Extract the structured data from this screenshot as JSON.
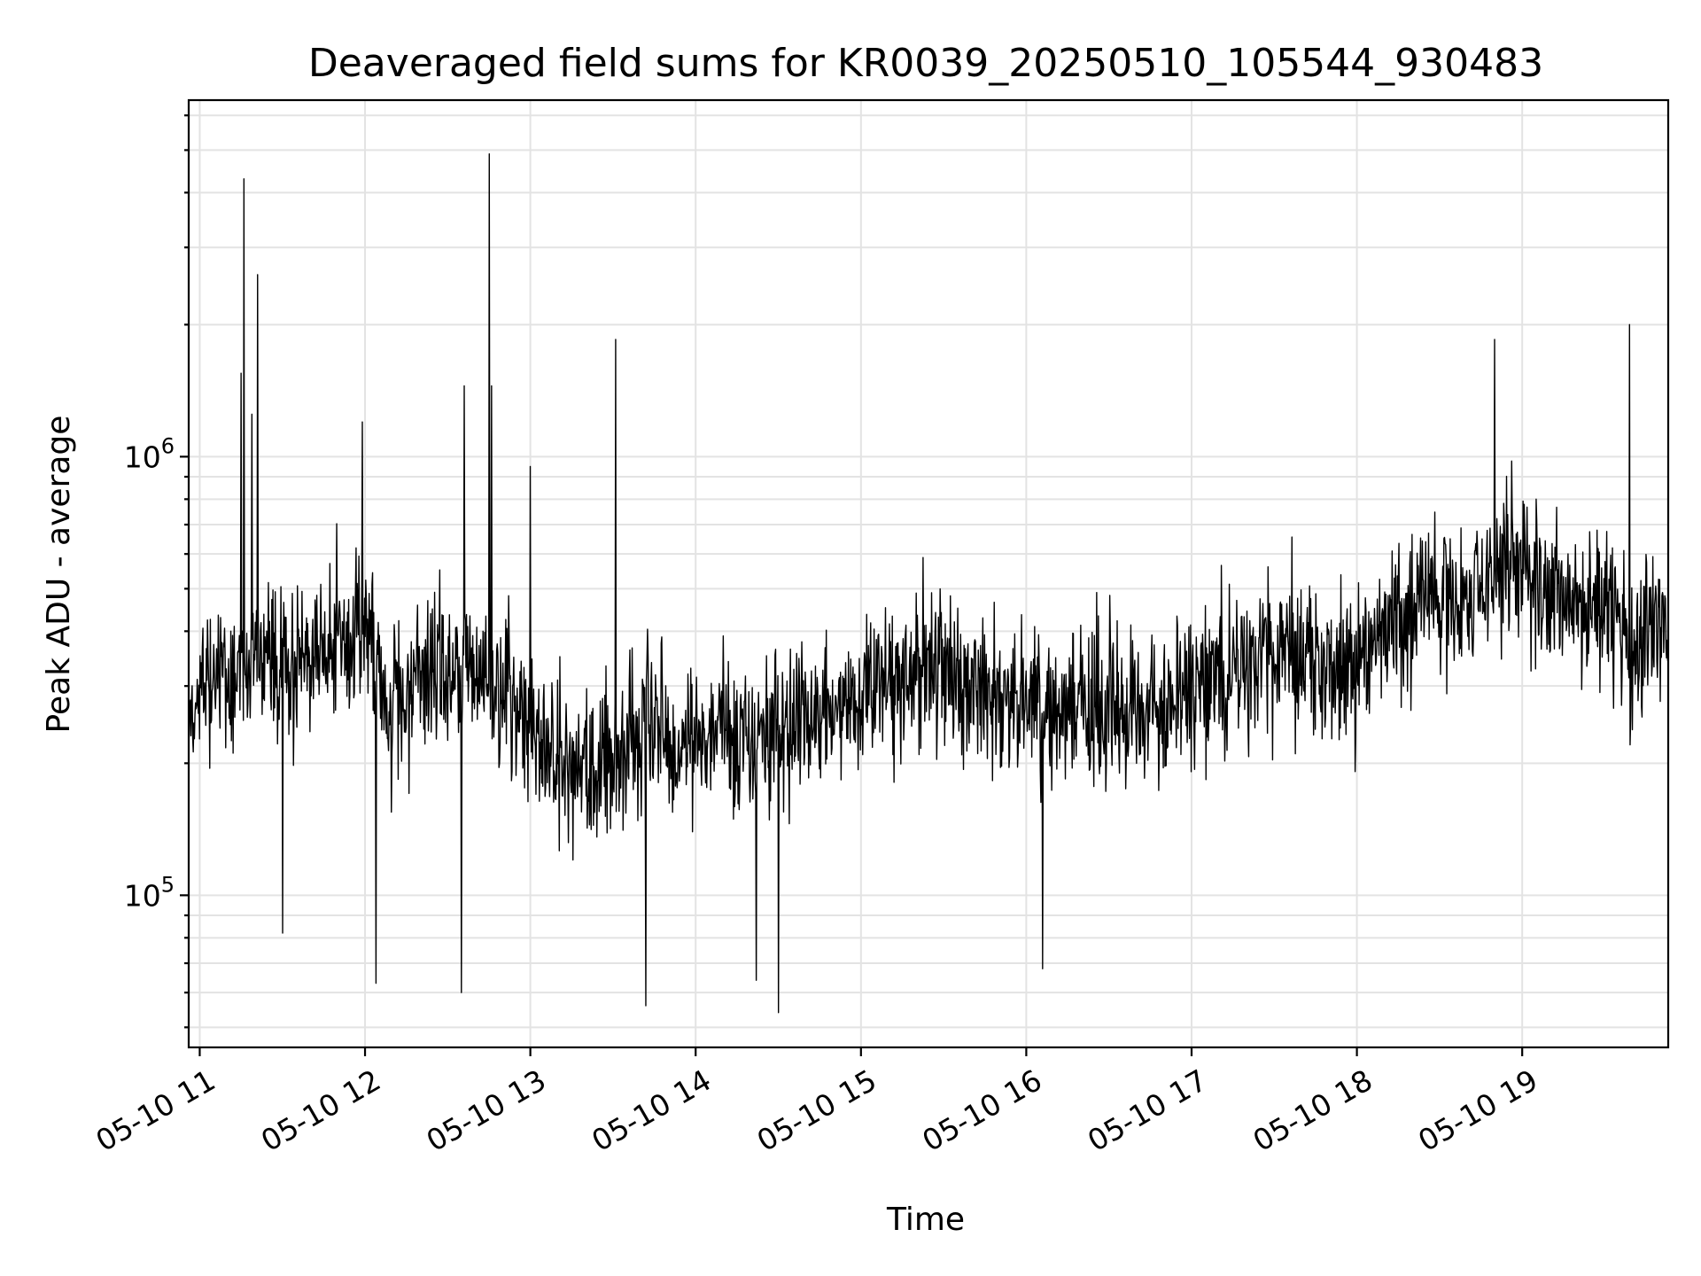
{
  "chart_data": {
    "type": "line",
    "title": "Deaveraged field sums for KR0039_20250510_105544_930483",
    "xlabel": "Time",
    "ylabel": "Peak ADU - average",
    "x_scale": "time",
    "y_scale": "log",
    "xlim": [
      "2025-05-10 10:56",
      "2025-05-10 19:53"
    ],
    "ylim": [
      45000,
      6500000
    ],
    "x_ticks": [
      {
        "value": "2025-05-10 11:00",
        "label": "05-10 11"
      },
      {
        "value": "2025-05-10 12:00",
        "label": "05-10 12"
      },
      {
        "value": "2025-05-10 13:00",
        "label": "05-10 13"
      },
      {
        "value": "2025-05-10 14:00",
        "label": "05-10 14"
      },
      {
        "value": "2025-05-10 15:00",
        "label": "05-10 15"
      },
      {
        "value": "2025-05-10 16:00",
        "label": "05-10 16"
      },
      {
        "value": "2025-05-10 17:00",
        "label": "05-10 17"
      },
      {
        "value": "2025-05-10 18:00",
        "label": "05-10 18"
      },
      {
        "value": "2025-05-10 19:00",
        "label": "05-10 19"
      }
    ],
    "y_ticks": [
      {
        "value": 100000,
        "label_base": "10",
        "label_exp": "5"
      },
      {
        "value": 1000000,
        "label_base": "10",
        "label_exp": "6"
      }
    ],
    "grid": true,
    "line_color": "#000000",
    "series": [
      {
        "x": [
          "2025-05-10 10:56",
          "2025-05-10 11:05",
          "2025-05-10 11:12",
          "2025-05-10 11:17",
          "2025-05-10 11:23",
          "2025-05-10 11:30",
          "2025-05-10 11:38",
          "2025-05-10 11:45",
          "2025-05-10 11:52",
          "2025-05-10 12:00",
          "2025-05-10 12:08",
          "2025-05-10 12:15",
          "2025-05-10 12:22",
          "2025-05-10 12:30",
          "2025-05-10 12:37",
          "2025-05-10 12:45",
          "2025-05-10 12:52",
          "2025-05-10 13:00",
          "2025-05-10 13:08",
          "2025-05-10 13:15",
          "2025-05-10 13:22",
          "2025-05-10 13:30",
          "2025-05-10 13:37",
          "2025-05-10 13:45",
          "2025-05-10 13:52",
          "2025-05-10 14:00",
          "2025-05-10 14:08",
          "2025-05-10 14:15",
          "2025-05-10 14:22",
          "2025-05-10 14:30",
          "2025-05-10 14:37",
          "2025-05-10 14:45",
          "2025-05-10 14:52",
          "2025-05-10 15:00",
          "2025-05-10 15:08",
          "2025-05-10 15:15",
          "2025-05-10 15:22",
          "2025-05-10 15:30",
          "2025-05-10 15:37",
          "2025-05-10 15:45",
          "2025-05-10 15:52",
          "2025-05-10 16:00",
          "2025-05-10 16:08",
          "2025-05-10 16:15",
          "2025-05-10 16:22",
          "2025-05-10 16:30",
          "2025-05-10 16:37",
          "2025-05-10 16:45",
          "2025-05-10 16:52",
          "2025-05-10 17:00",
          "2025-05-10 17:08",
          "2025-05-10 17:15",
          "2025-05-10 17:22",
          "2025-05-10 17:30",
          "2025-05-10 17:37",
          "2025-05-10 17:45",
          "2025-05-10 17:52",
          "2025-05-10 18:00",
          "2025-05-10 18:08",
          "2025-05-10 18:15",
          "2025-05-10 18:22",
          "2025-05-10 18:30",
          "2025-05-10 18:37",
          "2025-05-10 18:45",
          "2025-05-10 18:52",
          "2025-05-10 19:00",
          "2025-05-10 19:08",
          "2025-05-10 19:15",
          "2025-05-10 19:22",
          "2025-05-10 19:30",
          "2025-05-10 19:37",
          "2025-05-10 19:45",
          "2025-05-10 19:53"
        ],
        "y": [
          250000,
          320000,
          330000,
          340000,
          360000,
          340000,
          350000,
          360000,
          380000,
          400000,
          260000,
          300000,
          340000,
          330000,
          310000,
          300000,
          290000,
          240000,
          210000,
          190000,
          180000,
          200000,
          230000,
          240000,
          220000,
          230000,
          240000,
          230000,
          220000,
          240000,
          250000,
          260000,
          270000,
          270000,
          300000,
          320000,
          330000,
          320000,
          310000,
          300000,
          290000,
          270000,
          260000,
          270000,
          280000,
          260000,
          250000,
          260000,
          270000,
          290000,
          310000,
          330000,
          350000,
          360000,
          350000,
          340000,
          330000,
          350000,
          420000,
          440000,
          460000,
          470000,
          490000,
          520000,
          550000,
          560000,
          500000,
          480000,
          460000,
          440000,
          360000,
          390000,
          420000
        ],
        "noise_band_factor": 1.7,
        "spikes": [
          {
            "x": "2025-05-10 11:15",
            "y": 1550000
          },
          {
            "x": "2025-05-10 11:16",
            "y": 4300000
          },
          {
            "x": "2025-05-10 11:21",
            "y": 2600000
          },
          {
            "x": "2025-05-10 11:19",
            "y": 1250000
          },
          {
            "x": "2025-05-10 11:59",
            "y": 1200000
          },
          {
            "x": "2025-05-10 12:36",
            "y": 1450000
          },
          {
            "x": "2025-05-10 12:45",
            "y": 4900000
          },
          {
            "x": "2025-05-10 12:46",
            "y": 1450000
          },
          {
            "x": "2025-05-10 13:00",
            "y": 950000
          },
          {
            "x": "2025-05-10 13:31",
            "y": 1850000
          },
          {
            "x": "2025-05-10 18:50",
            "y": 1850000
          },
          {
            "x": "2025-05-10 19:39",
            "y": 2000000
          },
          {
            "x": "2025-05-10 12:35",
            "y": 60000
          },
          {
            "x": "2025-05-10 12:04",
            "y": 63000
          },
          {
            "x": "2025-05-10 13:42",
            "y": 56000
          },
          {
            "x": "2025-05-10 14:30",
            "y": 54000
          },
          {
            "x": "2025-05-10 16:06",
            "y": 68000
          },
          {
            "x": "2025-05-10 14:22",
            "y": 64000
          },
          {
            "x": "2025-05-10 11:30",
            "y": 82000
          }
        ]
      }
    ]
  }
}
